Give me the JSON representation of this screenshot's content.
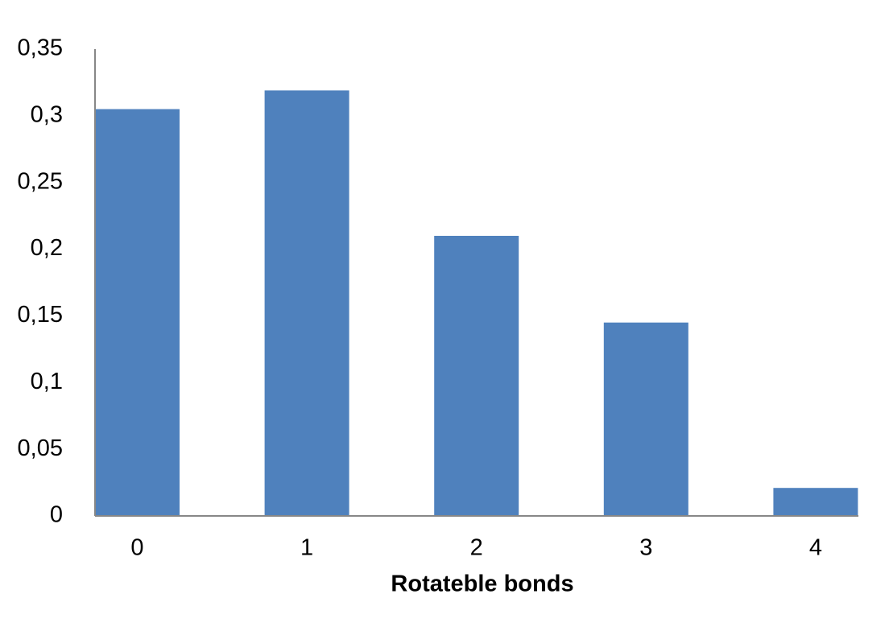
{
  "chart_data": {
    "type": "bar",
    "x_label": "Rotateble bonds",
    "categories": [
      "0",
      "1",
      "2",
      "3",
      "4"
    ],
    "values": [
      0.305,
      0.319,
      0.21,
      0.145,
      0.021
    ],
    "color": "#4f81bd",
    "ylim": [
      0,
      0.35
    ],
    "yticks": [
      0,
      {
        "value": 0.05,
        "label": "0,05"
      },
      {
        "value": 0.1,
        "label": "0,1"
      },
      {
        "value": 0.15,
        "label": "0,15"
      },
      {
        "value": 0.2,
        "label": "0,2"
      },
      {
        "value": 0.25,
        "label": "0,25"
      },
      {
        "value": 0.3,
        "label": "0,3"
      },
      {
        "value": 0.35,
        "label": "0,35"
      }
    ],
    "grid": false
  }
}
